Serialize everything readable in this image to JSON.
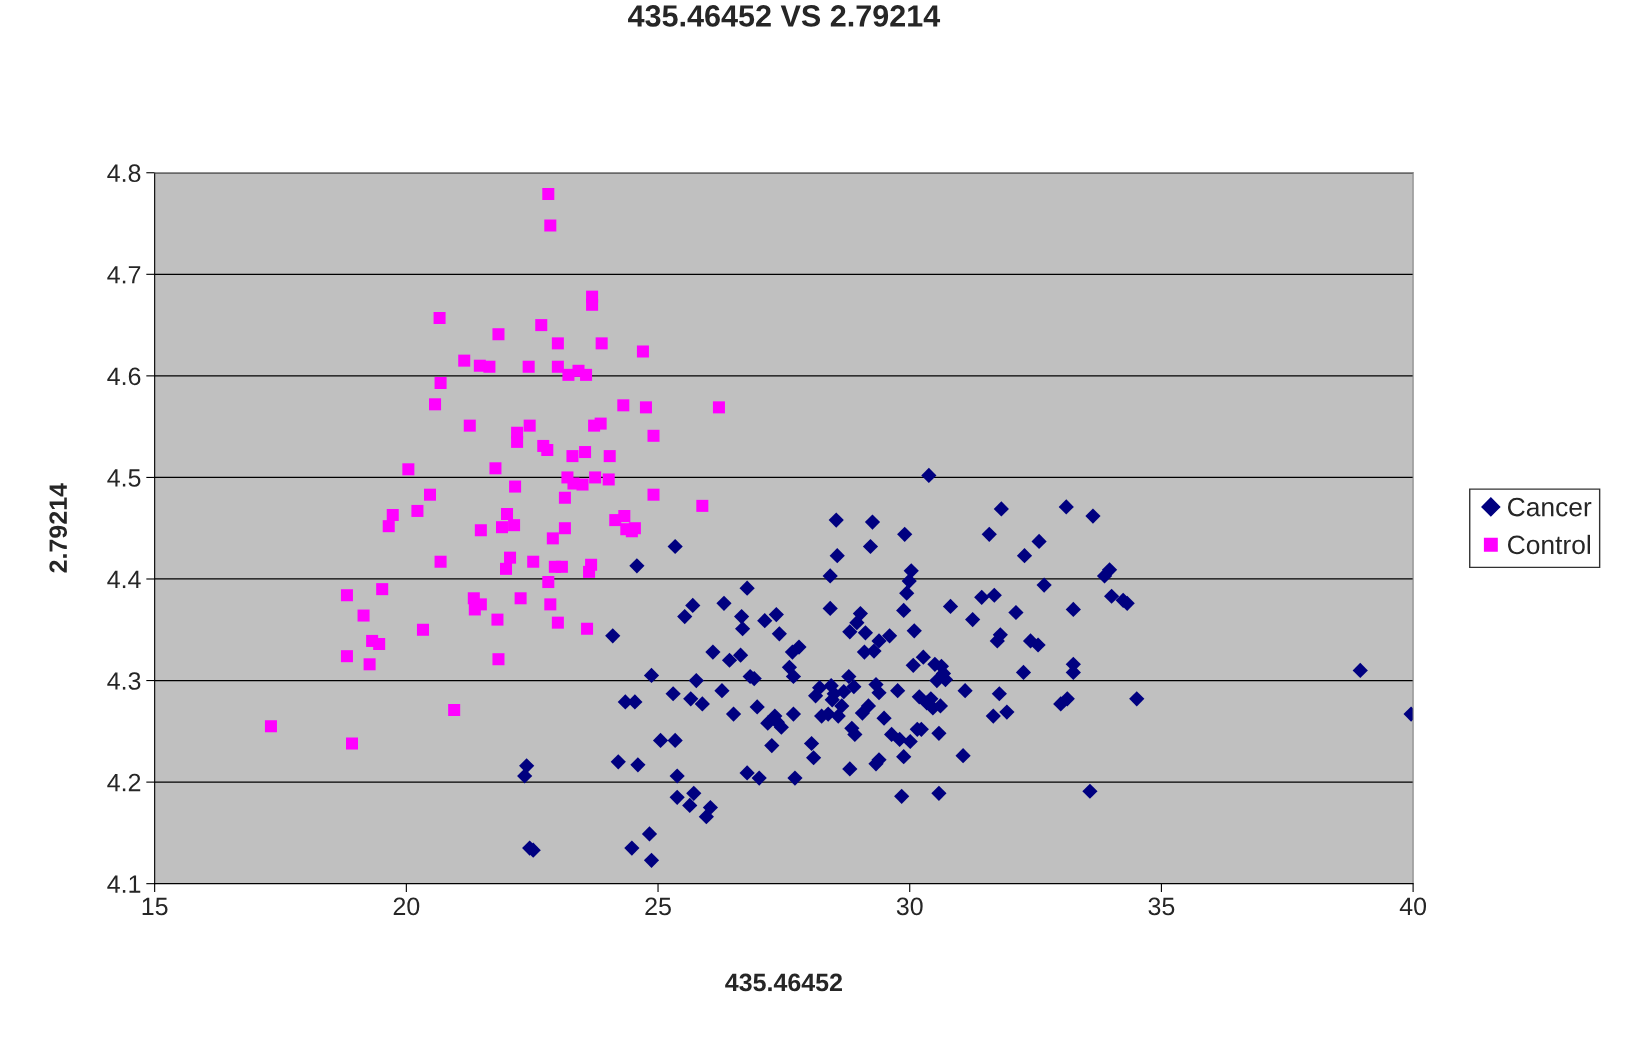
{
  "chart_data": {
    "type": "scatter",
    "title": "435.46452 VS 2.79214",
    "xlabel": "435.46452",
    "ylabel": "2.79214",
    "xlim": [
      15,
      40
    ],
    "xticks": [
      15,
      20,
      25,
      30,
      35,
      40
    ],
    "ylim": [
      4.1,
      4.8
    ],
    "yticks": [
      4.1,
      4.2,
      4.3,
      4.4,
      4.5,
      4.6,
      4.7,
      4.8
    ],
    "grid": "y",
    "legend": "right",
    "series": [
      {
        "name": "Cancer",
        "color": "#000080",
        "marker": "diamond",
        "x": [
          22.35,
          22.39,
          22.45,
          22.52,
          24.1,
          24.21,
          24.35,
          24.48,
          24.54,
          24.58,
          24.6,
          24.83,
          24.87,
          24.87,
          25.05,
          25.34,
          25.34,
          25.3,
          25.38,
          25.38,
          25.53,
          25.63,
          25.65,
          25.69,
          25.71,
          25.76,
          25.88,
          25.96,
          26.04,
          26.09,
          26.27,
          26.31,
          26.42,
          26.5,
          26.64,
          26.66,
          26.68,
          26.77,
          26.77,
          26.83,
          26.91,
          26.97,
          27.01,
          27.12,
          27.18,
          27.26,
          27.32,
          27.35,
          27.37,
          27.41,
          27.45,
          27.61,
          27.67,
          27.69,
          27.69,
          27.72,
          27.8,
          28.05,
          28.09,
          28.13,
          28.21,
          28.25,
          28.38,
          28.42,
          28.42,
          28.44,
          28.46,
          28.5,
          28.54,
          28.56,
          28.58,
          28.65,
          28.69,
          28.79,
          28.81,
          28.81,
          28.85,
          28.89,
          28.91,
          28.95,
          29.02,
          29.06,
          29.1,
          29.12,
          29.18,
          29.22,
          29.26,
          29.29,
          29.33,
          29.33,
          29.39,
          29.39,
          29.39,
          29.49,
          29.6,
          29.64,
          29.76,
          29.8,
          29.84,
          29.88,
          29.88,
          29.9,
          29.94,
          29.99,
          30.01,
          30.03,
          30.07,
          30.09,
          30.15,
          30.19,
          30.23,
          30.27,
          30.34,
          30.38,
          30.42,
          30.46,
          30.5,
          30.54,
          30.58,
          30.58,
          30.61,
          30.63,
          30.67,
          30.71,
          30.81,
          31.06,
          31.1,
          31.25,
          31.43,
          31.58,
          31.66,
          31.68,
          31.74,
          31.78,
          31.8,
          31.82,
          31.93,
          32.11,
          32.26,
          32.28,
          32.4,
          32.55,
          32.57,
          32.67,
          33.0,
          33.11,
          33.13,
          33.25,
          33.25,
          33.25,
          33.58,
          33.64,
          33.87,
          33.97,
          34.01,
          34.24,
          34.32,
          34.51,
          38.95,
          39.96
        ],
        "values": [
          4.206,
          4.216,
          4.135,
          4.133,
          4.344,
          4.22,
          4.279,
          4.135,
          4.279,
          4.413,
          4.217,
          4.149,
          4.123,
          4.305,
          4.241,
          4.432,
          4.241,
          4.287,
          4.206,
          4.185,
          4.363,
          4.177,
          4.282,
          4.374,
          4.189,
          4.3,
          4.277,
          4.166,
          4.175,
          4.328,
          4.29,
          4.376,
          4.32,
          4.267,
          4.325,
          4.363,
          4.351,
          4.391,
          4.209,
          4.304,
          4.302,
          4.274,
          4.204,
          4.359,
          4.258,
          4.236,
          4.265,
          4.365,
          4.259,
          4.346,
          4.254,
          4.313,
          4.328,
          4.304,
          4.267,
          4.204,
          4.333,
          4.238,
          4.224,
          4.285,
          4.293,
          4.265,
          4.267,
          4.403,
          4.371,
          4.295,
          4.281,
          4.287,
          4.458,
          4.423,
          4.265,
          4.275,
          4.289,
          4.304,
          4.348,
          4.213,
          4.253,
          4.294,
          4.247,
          4.357,
          4.366,
          4.268,
          4.328,
          4.347,
          4.275,
          4.432,
          4.456,
          4.329,
          4.218,
          4.296,
          4.222,
          4.288,
          4.339,
          4.263,
          4.344,
          4.247,
          4.29,
          4.242,
          4.186,
          4.225,
          4.369,
          4.444,
          4.386,
          4.398,
          4.24,
          4.408,
          4.315,
          4.349,
          4.252,
          4.284,
          4.252,
          4.323,
          4.278,
          4.502,
          4.282,
          4.273,
          4.316,
          4.3,
          4.189,
          4.248,
          4.275,
          4.314,
          4.307,
          4.301,
          4.373,
          4.226,
          4.29,
          4.36,
          4.382,
          4.444,
          4.265,
          4.384,
          4.339,
          4.287,
          4.345,
          4.469,
          4.269,
          4.367,
          4.308,
          4.423,
          4.339,
          4.335,
          4.437,
          4.394,
          4.277,
          4.471,
          4.282,
          4.37,
          4.316,
          4.308,
          4.191,
          4.462,
          4.403,
          4.409,
          4.383,
          4.379,
          4.376,
          4.282,
          4.31,
          4.267
        ]
      },
      {
        "name": "Control",
        "color": "#ff00ff",
        "marker": "square",
        "x": [
          17.31,
          18.82,
          18.82,
          18.92,
          19.15,
          19.27,
          19.32,
          19.46,
          19.52,
          19.65,
          19.73,
          20.04,
          20.22,
          20.33,
          20.47,
          20.57,
          20.66,
          20.68,
          20.68,
          20.95,
          21.15,
          21.26,
          21.34,
          21.36,
          21.48,
          21.48,
          21.46,
          21.65,
          21.77,
          21.81,
          21.83,
          21.83,
          21.9,
          21.98,
          22.0,
          22.06,
          22.14,
          22.16,
          22.2,
          22.2,
          22.27,
          22.43,
          22.45,
          22.52,
          22.68,
          22.72,
          22.8,
          22.82,
          22.86,
          22.82,
          22.86,
          22.91,
          22.95,
          23.01,
          23.01,
          23.01,
          23.09,
          23.15,
          23.15,
          23.2,
          23.22,
          23.3,
          23.32,
          23.42,
          23.5,
          23.55,
          23.57,
          23.59,
          23.63,
          23.67,
          23.69,
          23.69,
          23.73,
          23.75,
          23.86,
          23.88,
          24.02,
          24.04,
          24.15,
          24.31,
          24.33,
          24.37,
          24.48,
          24.54,
          24.7,
          24.76,
          24.91,
          24.91,
          25.88,
          26.21
        ],
        "values": [
          4.255,
          4.384,
          4.324,
          4.238,
          4.364,
          4.316,
          4.339,
          4.336,
          4.39,
          4.452,
          4.463,
          4.508,
          4.467,
          4.35,
          4.483,
          4.572,
          4.657,
          4.593,
          4.417,
          4.271,
          4.615,
          4.551,
          4.381,
          4.37,
          4.375,
          4.448,
          4.61,
          4.609,
          4.509,
          4.36,
          4.641,
          4.321,
          4.451,
          4.41,
          4.464,
          4.421,
          4.453,
          4.491,
          4.535,
          4.544,
          4.381,
          4.609,
          4.551,
          4.417,
          4.65,
          4.531,
          4.527,
          4.779,
          4.748,
          4.397,
          4.375,
          4.44,
          4.412,
          4.357,
          4.632,
          4.609,
          4.412,
          4.45,
          4.48,
          4.5,
          4.601,
          4.521,
          4.494,
          4.605,
          4.493,
          4.525,
          4.601,
          4.351,
          4.407,
          4.414,
          4.678,
          4.67,
          4.551,
          4.5,
          4.553,
          4.632,
          4.498,
          4.521,
          4.458,
          4.571,
          4.462,
          4.449,
          4.447,
          4.45,
          4.624,
          4.569,
          4.541,
          4.483,
          4.472,
          4.569
        ]
      }
    ]
  }
}
